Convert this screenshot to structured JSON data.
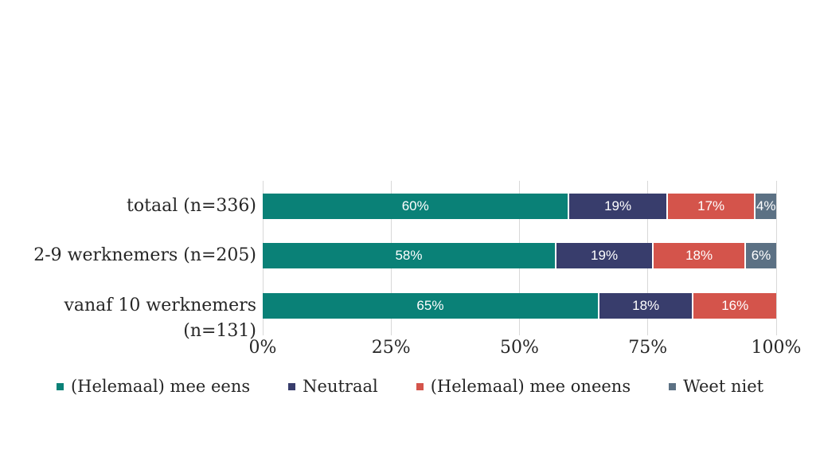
{
  "chart_data": {
    "type": "bar",
    "orientation": "horizontal",
    "stacked": true,
    "title": "",
    "xlabel": "",
    "ylabel": "",
    "xlim": [
      0,
      100
    ],
    "grid": true,
    "legend_position": "bottom",
    "categories": [
      "totaal (n=336)",
      "2-9 werknemers (n=205)",
      "vanaf 10 werknemers (n=131)"
    ],
    "x_ticks": [
      {
        "label": "0%",
        "value": 0
      },
      {
        "label": "25%",
        "value": 25
      },
      {
        "label": "50%",
        "value": 50
      },
      {
        "label": "75%",
        "value": 75
      },
      {
        "label": "100%",
        "value": 100
      }
    ],
    "series": [
      {
        "name": "(Helemaal) mee eens",
        "color": "#0a8177",
        "values": [
          60,
          58,
          65
        ]
      },
      {
        "name": "Neutraal",
        "color": "#383d6c",
        "values": [
          19,
          19,
          18
        ]
      },
      {
        "name": "(Helemaal) mee oneens",
        "color": "#d4544b",
        "values": [
          17,
          18,
          16
        ]
      },
      {
        "name": "Weet niet",
        "color": "#5c7184",
        "values": [
          4,
          6,
          0
        ]
      }
    ],
    "value_label_suffix": "%"
  },
  "layout_colors": {
    "background": "#ffffff",
    "gridline": "#d8d8d8",
    "text": "#262626",
    "bar_label_text": "#ffffff"
  }
}
